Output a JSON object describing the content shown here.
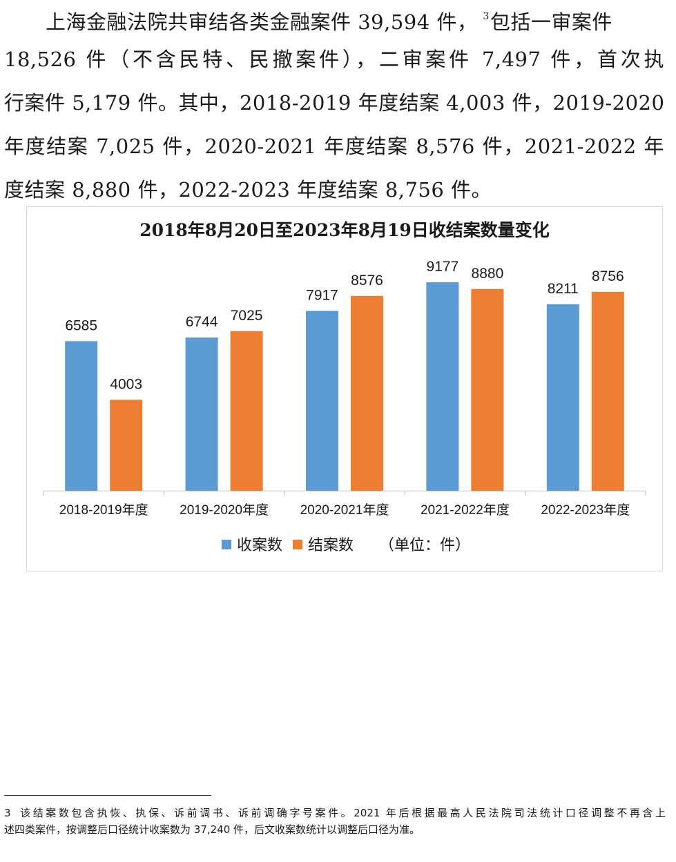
{
  "paragraph": {
    "lines": [
      "上海金融法院共审结各类金融案件 39,594 件，",
      "包括一审案件",
      "18,526 件（不含民特、民撤案件），二审案件 7,497 件，首次执",
      "行案件 5,179 件。其中，2018-2019 年度结案 4,003 件，2019-2020",
      "年度结案 7,025 件，2020-2021 年度结案 8,576 件，2021-2022 年",
      "度结案 8,880 件，2022-2023 年度结案 8,756 件。"
    ],
    "footnote_ref": "3"
  },
  "chart_data": {
    "type": "bar",
    "title": "2018年8月20日至2023年8月19日收结案数量变化",
    "categories": [
      "2018-2019年度",
      "2019-2020年度",
      "2020-2021年度",
      "2021-2022年度",
      "2022-2023年度"
    ],
    "series": [
      {
        "name": "收案数",
        "values": [
          6585,
          6744,
          7917,
          9177,
          8211
        ],
        "color": "#5b9bd5"
      },
      {
        "name": "结案数",
        "values": [
          4003,
          7025,
          8576,
          8880,
          8756
        ],
        "color": "#ed7d31"
      }
    ],
    "ylim": [
      0,
      10000
    ],
    "grid": false,
    "legend_position": "bottom",
    "unit_note": "（单位：件）"
  },
  "footnote": {
    "marker": "3",
    "line1": "该结案数包含执恢、执保、诉前调书、诉前调确字号案件。2021 年后根据最高人民法院司法统计口径调整不再含上",
    "line2": "述四类案件，按调整后口径统计收案数为 37,240 件，后文收案数统计以调整后口径为准。"
  }
}
